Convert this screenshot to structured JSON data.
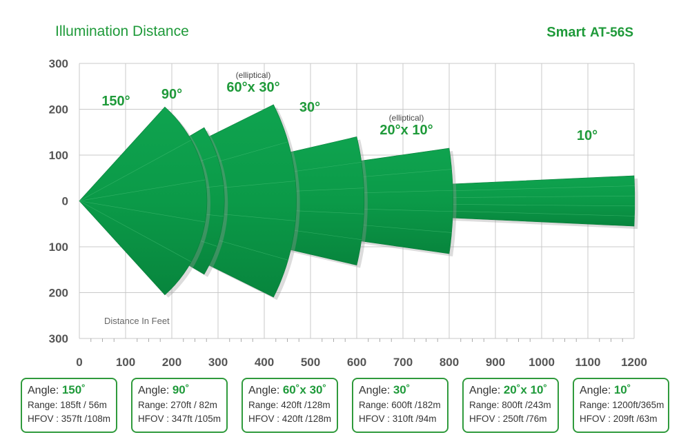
{
  "header": {
    "title": "Illumination Distance",
    "brand": "Smart",
    "model": "AT-56S"
  },
  "colors": {
    "accent": "#1f9a3a",
    "fill": "#0a9a4a",
    "grid": "#c8c8c8",
    "axis_text": "#555555"
  },
  "chart_data": {
    "type": "area",
    "title": "Illumination Distance",
    "xlabel": "Distance In Feet",
    "ylabel": "",
    "xlim": [
      0,
      1200
    ],
    "ylim": [
      -300,
      300
    ],
    "x_ticks": [
      "0",
      "100",
      "200",
      "300",
      "400",
      "500",
      "600",
      "700",
      "800",
      "900",
      "1000",
      "1100",
      "1200"
    ],
    "y_ticks": [
      "300",
      "200",
      "100",
      "0",
      "100",
      "200",
      "300"
    ],
    "grid": true,
    "beams": [
      {
        "label": "150°",
        "note": "",
        "angle_deg": 150,
        "range_ft": 185,
        "hfov_ft": 357
      },
      {
        "label": "90°",
        "note": "",
        "angle_deg": 90,
        "range_ft": 270,
        "hfov_ft": 347
      },
      {
        "label": "60°x 30°",
        "note": "(elliptical)",
        "angle_deg": 60,
        "range_ft": 420,
        "hfov_ft": 420
      },
      {
        "label": "30°",
        "note": "",
        "angle_deg": 30,
        "range_ft": 600,
        "hfov_ft": 310
      },
      {
        "label": "20°x 10°",
        "note": "(elliptical)",
        "angle_deg": 20,
        "range_ft": 800,
        "hfov_ft": 250
      },
      {
        "label": "10°",
        "note": "",
        "angle_deg": 10,
        "range_ft": 1200,
        "hfov_ft": 209
      }
    ]
  },
  "specs": [
    {
      "angle_label": "Angle:",
      "angle": "150˚",
      "range": "Range: 185ft / 56m",
      "hfov": "HFOV : 357ft /108m"
    },
    {
      "angle_label": "Angle:",
      "angle": "90˚",
      "range": "Range: 270ft / 82m",
      "hfov": "HFOV : 347ft /105m"
    },
    {
      "angle_label": "Angle:",
      "angle": "60˚x 30˚",
      "range": "Range: 420ft /128m",
      "hfov": "HFOV : 420ft /128m"
    },
    {
      "angle_label": "Angle:",
      "angle": "30˚",
      "range": "Range: 600ft /182m",
      "hfov": "HFOV : 310ft /94m"
    },
    {
      "angle_label": "Angle:",
      "angle": "20˚x 10˚",
      "range": "Range: 800ft /243m",
      "hfov": "HFOV : 250ft /76m"
    },
    {
      "angle_label": "Angle:",
      "angle": "10˚",
      "range": "Range: 1200ft/365m",
      "hfov": "HFOV : 209ft /63m"
    }
  ]
}
